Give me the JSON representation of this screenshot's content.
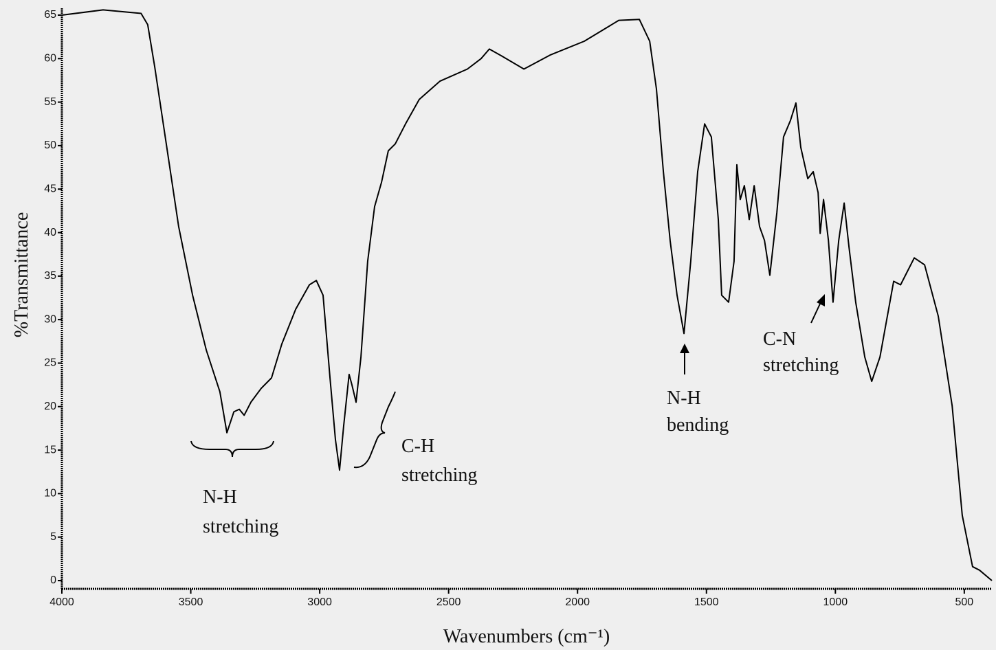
{
  "chart_data": {
    "type": "line",
    "xlabel": "Wavenumbers (cm⁻¹)",
    "ylabel": "%Transmittance",
    "x": [
      4000,
      3840,
      3693,
      3667,
      3640,
      3600,
      3547,
      3493,
      3440,
      3387,
      3360,
      3333,
      3312,
      3293,
      3267,
      3227,
      3187,
      3147,
      3093,
      3040,
      3013,
      2987,
      2960,
      2939,
      2923,
      2907,
      2886,
      2875,
      2859,
      2840,
      2814,
      2787,
      2760,
      2734,
      2707,
      2667,
      2614,
      2534,
      2427,
      2374,
      2342,
      2294,
      2208,
      2107,
      1974,
      1840,
      1760,
      1720,
      1694,
      1667,
      1641,
      1614,
      1587,
      1561,
      1534,
      1507,
      1481,
      1454,
      1441,
      1414,
      1393,
      1382,
      1369,
      1353,
      1334,
      1315,
      1294,
      1275,
      1254,
      1227,
      1201,
      1174,
      1153,
      1134,
      1107,
      1086,
      1067,
      1059,
      1046,
      1027,
      1009,
      987,
      966,
      947,
      921,
      886,
      859,
      827,
      774,
      747,
      694,
      654,
      601,
      547,
      508,
      468,
      441,
      393
    ],
    "values": [
      65.0,
      65.6,
      65.2,
      63.9,
      59.1,
      51.2,
      40.7,
      32.8,
      26.5,
      21.7,
      17.0,
      19.4,
      19.7,
      19.0,
      20.5,
      22.1,
      23.3,
      27.2,
      31.2,
      34.0,
      34.5,
      32.8,
      23.3,
      16.2,
      12.7,
      17.8,
      23.7,
      22.5,
      20.5,
      25.7,
      36.7,
      43.0,
      45.8,
      49.4,
      50.2,
      52.5,
      55.3,
      57.4,
      58.8,
      60.0,
      61.1,
      60.3,
      58.8,
      60.4,
      62.0,
      64.4,
      64.5,
      62.0,
      56.5,
      47.0,
      39.1,
      32.8,
      28.4,
      36.7,
      47.0,
      52.5,
      51.0,
      41.5,
      32.8,
      32.0,
      36.7,
      47.8,
      43.8,
      45.4,
      41.5,
      45.4,
      40.7,
      39.1,
      35.1,
      42.3,
      51.0,
      52.9,
      54.9,
      49.8,
      46.2,
      47.0,
      44.6,
      39.9,
      43.8,
      39.1,
      32.0,
      39.1,
      43.4,
      38.3,
      32.0,
      25.7,
      22.9,
      25.7,
      34.4,
      34.0,
      37.1,
      36.3,
      30.4,
      20.1,
      7.5,
      1.6,
      1.2,
      0
    ],
    "color": "#000000",
    "xlim": [
      4000,
      393
    ],
    "ylim": [
      0,
      65
    ],
    "xticks": [
      4000,
      3500,
      3000,
      2500,
      2000,
      1500,
      1000,
      500
    ],
    "yticks": [
      0,
      5,
      10,
      15,
      20,
      25,
      30,
      35,
      40,
      45,
      50,
      55,
      60,
      65
    ],
    "annotations": [
      {
        "lines": [
          "N-H",
          "stretching"
        ]
      },
      {
        "lines": [
          "C-H",
          "stretching"
        ]
      },
      {
        "lines": [
          "N-H",
          "bending"
        ]
      },
      {
        "lines": [
          "C-N",
          "stretching"
        ]
      }
    ]
  }
}
